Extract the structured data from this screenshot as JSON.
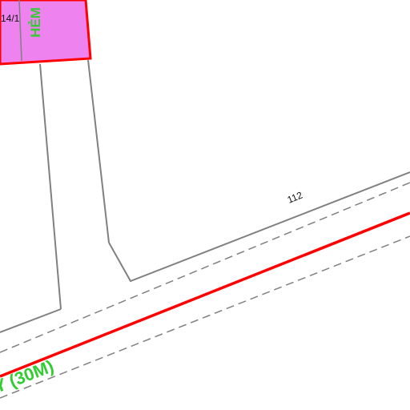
{
  "map": {
    "parcels": [
      {
        "label": "112"
      },
      {
        "label": "14/1"
      }
    ],
    "labels": {
      "alley": "HẺM",
      "road": "Y (30M)"
    },
    "colors": {
      "background": "#ffffff",
      "highlight_fill": "#ee82ee",
      "red_line": "#ff0000",
      "parcel_line": "#808080",
      "label_green": "#33cc33",
      "text": "#111111"
    }
  }
}
